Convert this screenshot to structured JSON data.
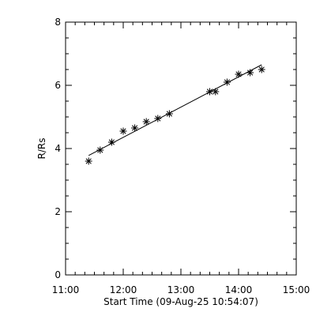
{
  "chart_data": {
    "type": "scatter",
    "title": "",
    "xlabel": "Start Time (09-Aug-25 10:54:07)",
    "ylabel": "R/Rs",
    "xlim": [
      "11:00",
      "15:00"
    ],
    "ylim": [
      0,
      8
    ],
    "x_ticks": [
      "11:00",
      "12:00",
      "13:00",
      "14:00",
      "15:00"
    ],
    "y_ticks": [
      "0",
      "2",
      "4",
      "6",
      "8"
    ],
    "grid": false,
    "marker": "asterisk",
    "points": [
      {
        "x": "11:24",
        "y": 3.6
      },
      {
        "x": "11:36",
        "y": 3.95
      },
      {
        "x": "11:48",
        "y": 4.2
      },
      {
        "x": "12:00",
        "y": 4.55
      },
      {
        "x": "12:12",
        "y": 4.65
      },
      {
        "x": "12:24",
        "y": 4.85
      },
      {
        "x": "12:36",
        "y": 4.95
      },
      {
        "x": "12:48",
        "y": 5.1
      },
      {
        "x": "13:30",
        "y": 5.8
      },
      {
        "x": "13:36",
        "y": 5.8
      },
      {
        "x": "13:48",
        "y": 6.1
      },
      {
        "x": "14:00",
        "y": 6.35
      },
      {
        "x": "14:12",
        "y": 6.4
      },
      {
        "x": "14:24",
        "y": 6.5
      }
    ],
    "fit": [
      {
        "x": "11:24",
        "y": 3.78
      },
      {
        "x": "14:24",
        "y": 6.65
      }
    ]
  }
}
